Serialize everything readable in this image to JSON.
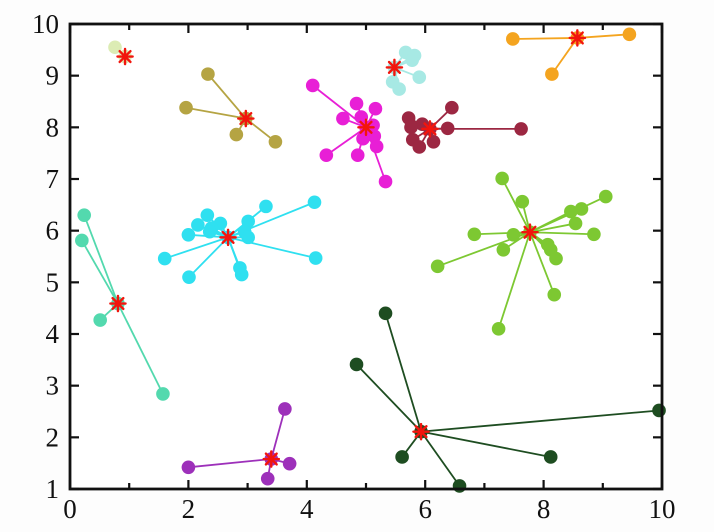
{
  "figure": {
    "background": "#fdfdfd",
    "plot_background": "#ffffff",
    "axis_color": "#111111"
  },
  "chart_data": {
    "type": "scatter",
    "title": "",
    "xlabel": "",
    "ylabel": "",
    "xlim": [
      0,
      10
    ],
    "ylim": [
      1,
      10
    ],
    "x_ticks": [
      0,
      1,
      2,
      3,
      4,
      5,
      6,
      7,
      8,
      9,
      10
    ],
    "x_tick_labels": [
      "0",
      "2",
      "4",
      "6",
      "8",
      "10"
    ],
    "x_labeled_ticks": [
      0,
      2,
      4,
      6,
      8,
      10
    ],
    "y_ticks": [
      1,
      2,
      3,
      4,
      5,
      6,
      7,
      8,
      9,
      10
    ],
    "y_tick_labels": [
      "1",
      "2",
      "3",
      "4",
      "5",
      "6",
      "7",
      "8",
      "9",
      "10"
    ],
    "grid": false,
    "legend": false,
    "note": "clustered points, each joined by a line to its red asterisk cluster center",
    "center_marker": {
      "shape": "asterisk",
      "color": "#f2150d"
    },
    "clusters": [
      {
        "name": "pale-green",
        "color": "#dcecb4",
        "center": [
          0.93,
          9.37
        ],
        "points": [
          [
            0.76,
            9.55
          ]
        ]
      },
      {
        "name": "dark-khaki",
        "color": "#b5a443",
        "center": [
          2.97,
          8.17
        ],
        "points": [
          [
            2.33,
            9.03
          ],
          [
            1.96,
            8.38
          ],
          [
            2.81,
            7.86
          ],
          [
            3.47,
            7.72
          ]
        ]
      },
      {
        "name": "magenta",
        "color": "#e81fd6",
        "center": [
          5.0,
          8.0
        ],
        "points": [
          [
            4.1,
            8.81
          ],
          [
            4.84,
            8.46
          ],
          [
            5.16,
            8.36
          ],
          [
            4.92,
            8.2
          ],
          [
            4.61,
            8.17
          ],
          [
            5.12,
            8.04
          ],
          [
            5.14,
            7.83
          ],
          [
            4.95,
            7.78
          ],
          [
            5.18,
            7.63
          ],
          [
            4.33,
            7.46
          ],
          [
            4.86,
            7.46
          ],
          [
            5.33,
            6.95
          ]
        ]
      },
      {
        "name": "pale-turquoise",
        "color": "#a7e9e4",
        "center": [
          5.48,
          9.16
        ],
        "points": [
          [
            5.67,
            9.45
          ],
          [
            5.82,
            9.39
          ],
          [
            5.78,
            9.3
          ],
          [
            5.9,
            8.97
          ],
          [
            5.45,
            8.88
          ],
          [
            5.56,
            8.74
          ]
        ]
      },
      {
        "name": "dark-red",
        "color": "#9c2742",
        "center": [
          6.08,
          7.97
        ],
        "points": [
          [
            6.45,
            8.38
          ],
          [
            5.72,
            8.18
          ],
          [
            5.95,
            8.06
          ],
          [
            5.76,
            8.0
          ],
          [
            6.38,
            7.98
          ],
          [
            7.62,
            7.97
          ],
          [
            5.79,
            7.76
          ],
          [
            6.14,
            7.72
          ],
          [
            5.9,
            7.62
          ]
        ]
      },
      {
        "name": "orange",
        "color": "#f4a41f",
        "center": [
          8.57,
          9.73
        ],
        "points": [
          [
            7.48,
            9.71
          ],
          [
            9.45,
            9.8
          ],
          [
            8.14,
            9.03
          ]
        ]
      },
      {
        "name": "yellow-green",
        "color": "#7dc832",
        "center": [
          7.77,
          5.97
        ],
        "points": [
          [
            7.3,
            7.01
          ],
          [
            7.64,
            6.56
          ],
          [
            9.05,
            6.66
          ],
          [
            8.64,
            6.42
          ],
          [
            8.46,
            6.37
          ],
          [
            8.54,
            6.14
          ],
          [
            8.85,
            5.93
          ],
          [
            6.83,
            5.93
          ],
          [
            7.49,
            5.92
          ],
          [
            8.07,
            5.73
          ],
          [
            7.32,
            5.63
          ],
          [
            8.12,
            5.63
          ],
          [
            8.21,
            5.46
          ],
          [
            6.21,
            5.31
          ],
          [
            8.18,
            4.76
          ],
          [
            7.24,
            4.1
          ]
        ]
      },
      {
        "name": "cyan",
        "color": "#2fe0f0",
        "center": [
          2.67,
          5.87
        ],
        "points": [
          [
            4.13,
            6.55
          ],
          [
            3.31,
            6.47
          ],
          [
            2.32,
            6.3
          ],
          [
            3.01,
            6.18
          ],
          [
            2.54,
            6.14
          ],
          [
            2.16,
            6.11
          ],
          [
            2.39,
            6.05
          ],
          [
            2.95,
            5.98
          ],
          [
            2.36,
            5.98
          ],
          [
            2.0,
            5.92
          ],
          [
            3.01,
            5.87
          ],
          [
            4.15,
            5.47
          ],
          [
            1.6,
            5.46
          ],
          [
            2.87,
            5.28
          ],
          [
            2.9,
            5.15
          ],
          [
            2.01,
            5.1
          ]
        ]
      },
      {
        "name": "turquoise",
        "color": "#53d9ae",
        "center": [
          0.81,
          4.59
        ],
        "points": [
          [
            0.24,
            6.3
          ],
          [
            0.2,
            5.81
          ],
          [
            0.51,
            4.27
          ],
          [
            1.57,
            2.84
          ]
        ]
      },
      {
        "name": "purple",
        "color": "#9d30ba",
        "center": [
          3.4,
          1.58
        ],
        "points": [
          [
            3.63,
            2.55
          ],
          [
            2.0,
            1.42
          ],
          [
            3.71,
            1.49
          ],
          [
            3.34,
            1.2
          ]
        ]
      },
      {
        "name": "dark-green",
        "color": "#1e4d21",
        "center": [
          5.93,
          2.11
        ],
        "points": [
          [
            5.33,
            4.4
          ],
          [
            4.84,
            3.41
          ],
          [
            5.61,
            1.62
          ],
          [
            6.58,
            1.06
          ],
          [
            8.12,
            1.62
          ],
          [
            9.95,
            2.52
          ]
        ]
      }
    ]
  }
}
